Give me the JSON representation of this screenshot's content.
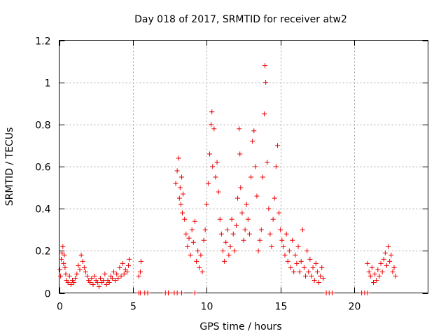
{
  "chart_data": {
    "type": "scatter",
    "title": "Day 018 of 2017, SRMTID for receiver atw2",
    "xlabel": "GPS time / hours",
    "ylabel": "SRMTID / TECUs",
    "xlim": [
      0,
      25
    ],
    "ylim": [
      0,
      1.2
    ],
    "x_ticks": [
      0,
      5,
      10,
      15,
      20
    ],
    "x_tick_labels": [
      "0",
      "5",
      "10",
      "15",
      "20"
    ],
    "y_ticks": [
      0,
      0.2,
      0.4,
      0.6,
      0.8,
      1.0,
      1.2
    ],
    "y_tick_labels": [
      "0",
      "0.2",
      "0.4",
      "0.6",
      "0.8",
      "1",
      "1.2"
    ],
    "grid": true,
    "marker": "+",
    "series_color": "#ee0000",
    "series": [
      {
        "name": "SRMTID",
        "points": [
          [
            0.05,
            0.11
          ],
          [
            0.1,
            0.08
          ],
          [
            0.15,
            0.16
          ],
          [
            0.2,
            0.19
          ],
          [
            0.25,
            0.22
          ],
          [
            0.3,
            0.14
          ],
          [
            0.35,
            0.18
          ],
          [
            0.4,
            0.12
          ],
          [
            0.45,
            0.09
          ],
          [
            0.5,
            0.06
          ],
          [
            0.6,
            0.05
          ],
          [
            0.7,
            0.08
          ],
          [
            0.8,
            0.04
          ],
          [
            0.9,
            0.06
          ],
          [
            1.0,
            0.05
          ],
          [
            1.1,
            0.07
          ],
          [
            1.2,
            0.09
          ],
          [
            1.3,
            0.13
          ],
          [
            1.4,
            0.11
          ],
          [
            1.5,
            0.18
          ],
          [
            1.6,
            0.15
          ],
          [
            1.7,
            0.12
          ],
          [
            1.8,
            0.1
          ],
          [
            1.9,
            0.08
          ],
          [
            2.0,
            0.06
          ],
          [
            2.1,
            0.05
          ],
          [
            2.2,
            0.07
          ],
          [
            2.3,
            0.04
          ],
          [
            2.4,
            0.08
          ],
          [
            2.5,
            0.06
          ],
          [
            2.6,
            0.05
          ],
          [
            2.7,
            0.03
          ],
          [
            2.8,
            0.07
          ],
          [
            2.9,
            0.05
          ],
          [
            3.0,
            0.06
          ],
          [
            3.1,
            0.09
          ],
          [
            3.2,
            0.04
          ],
          [
            3.3,
            0.06
          ],
          [
            3.4,
            0.05
          ],
          [
            3.5,
            0.08
          ],
          [
            3.6,
            0.07
          ],
          [
            3.7,
            0.1
          ],
          [
            3.8,
            0.06
          ],
          [
            3.9,
            0.09
          ],
          [
            4.0,
            0.07
          ],
          [
            4.1,
            0.12
          ],
          [
            4.2,
            0.08
          ],
          [
            4.3,
            0.14
          ],
          [
            4.4,
            0.09
          ],
          [
            4.5,
            0.11
          ],
          [
            4.6,
            0.1
          ],
          [
            4.7,
            0.13
          ],
          [
            4.75,
            0.16
          ],
          [
            5.4,
            0.08
          ],
          [
            5.5,
            0.1
          ],
          [
            5.55,
            0.15
          ],
          [
            5.4,
            0.0
          ],
          [
            5.5,
            0.0
          ],
          [
            5.8,
            0.0
          ],
          [
            6.0,
            0.0
          ],
          [
            7.2,
            0.0
          ],
          [
            7.4,
            0.0
          ],
          [
            7.8,
            0.0
          ],
          [
            8.0,
            0.0
          ],
          [
            8.3,
            0.0
          ],
          [
            9.2,
            0.0
          ],
          [
            7.9,
            0.52
          ],
          [
            8.0,
            0.58
          ],
          [
            8.1,
            0.64
          ],
          [
            8.15,
            0.45
          ],
          [
            8.2,
            0.5
          ],
          [
            8.25,
            0.42
          ],
          [
            8.3,
            0.55
          ],
          [
            8.35,
            0.38
          ],
          [
            8.4,
            0.47
          ],
          [
            8.5,
            0.35
          ],
          [
            8.6,
            0.28
          ],
          [
            8.7,
            0.22
          ],
          [
            8.8,
            0.26
          ],
          [
            8.9,
            0.18
          ],
          [
            9.0,
            0.3
          ],
          [
            9.1,
            0.24
          ],
          [
            9.2,
            0.34
          ],
          [
            9.3,
            0.15
          ],
          [
            9.4,
            0.2
          ],
          [
            9.5,
            0.12
          ],
          [
            9.6,
            0.18
          ],
          [
            9.7,
            0.1
          ],
          [
            9.8,
            0.25
          ],
          [
            9.9,
            0.3
          ],
          [
            10.0,
            0.42
          ],
          [
            10.1,
            0.52
          ],
          [
            10.2,
            0.66
          ],
          [
            10.3,
            0.8
          ],
          [
            10.35,
            0.86
          ],
          [
            10.4,
            0.6
          ],
          [
            10.5,
            0.78
          ],
          [
            10.6,
            0.55
          ],
          [
            10.7,
            0.62
          ],
          [
            10.8,
            0.48
          ],
          [
            10.9,
            0.35
          ],
          [
            11.0,
            0.28
          ],
          [
            11.1,
            0.2
          ],
          [
            11.2,
            0.15
          ],
          [
            11.3,
            0.24
          ],
          [
            11.4,
            0.3
          ],
          [
            11.5,
            0.18
          ],
          [
            11.6,
            0.22
          ],
          [
            11.7,
            0.35
          ],
          [
            11.8,
            0.28
          ],
          [
            11.9,
            0.2
          ],
          [
            12.0,
            0.32
          ],
          [
            12.1,
            0.45
          ],
          [
            12.2,
            0.78
          ],
          [
            12.25,
            0.66
          ],
          [
            12.3,
            0.5
          ],
          [
            12.4,
            0.38
          ],
          [
            12.5,
            0.25
          ],
          [
            12.6,
            0.3
          ],
          [
            12.7,
            0.42
          ],
          [
            12.8,
            0.35
          ],
          [
            12.9,
            0.28
          ],
          [
            13.0,
            0.55
          ],
          [
            13.1,
            0.72
          ],
          [
            13.2,
            0.77
          ],
          [
            13.3,
            0.6
          ],
          [
            13.4,
            0.46
          ],
          [
            13.5,
            0.2
          ],
          [
            13.6,
            0.25
          ],
          [
            13.7,
            0.3
          ],
          [
            13.8,
            0.55
          ],
          [
            13.9,
            0.85
          ],
          [
            13.95,
            1.08
          ],
          [
            14.0,
            1.0
          ],
          [
            14.1,
            0.62
          ],
          [
            14.2,
            0.4
          ],
          [
            14.3,
            0.28
          ],
          [
            14.4,
            0.22
          ],
          [
            14.5,
            0.35
          ],
          [
            14.6,
            0.45
          ],
          [
            14.7,
            0.6
          ],
          [
            14.8,
            0.7
          ],
          [
            14.9,
            0.38
          ],
          [
            15.0,
            0.3
          ],
          [
            15.1,
            0.25
          ],
          [
            15.2,
            0.22
          ],
          [
            15.3,
            0.18
          ],
          [
            15.4,
            0.28
          ],
          [
            15.5,
            0.15
          ],
          [
            15.6,
            0.2
          ],
          [
            15.7,
            0.12
          ],
          [
            15.8,
            0.25
          ],
          [
            15.9,
            0.1
          ],
          [
            16.0,
            0.18
          ],
          [
            16.1,
            0.14
          ],
          [
            16.2,
            0.22
          ],
          [
            16.3,
            0.1
          ],
          [
            16.4,
            0.15
          ],
          [
            16.5,
            0.3
          ],
          [
            16.6,
            0.12
          ],
          [
            16.7,
            0.08
          ],
          [
            16.8,
            0.2
          ],
          [
            16.9,
            0.1
          ],
          [
            17.0,
            0.16
          ],
          [
            17.1,
            0.08
          ],
          [
            17.2,
            0.12
          ],
          [
            17.3,
            0.06
          ],
          [
            17.4,
            0.14
          ],
          [
            17.5,
            0.1
          ],
          [
            17.6,
            0.05
          ],
          [
            17.7,
            0.08
          ],
          [
            17.8,
            0.12
          ],
          [
            17.9,
            0.07
          ],
          [
            18.1,
            0.0
          ],
          [
            18.3,
            0.0
          ],
          [
            18.5,
            0.0
          ],
          [
            20.5,
            0.0
          ],
          [
            20.7,
            0.0
          ],
          [
            20.9,
            0.0
          ],
          [
            20.9,
            0.14
          ],
          [
            21.0,
            0.1
          ],
          [
            21.1,
            0.08
          ],
          [
            21.2,
            0.12
          ],
          [
            21.3,
            0.05
          ],
          [
            21.4,
            0.09
          ],
          [
            21.5,
            0.06
          ],
          [
            21.6,
            0.11
          ],
          [
            21.7,
            0.08
          ],
          [
            21.8,
            0.14
          ],
          [
            21.9,
            0.1
          ],
          [
            22.0,
            0.16
          ],
          [
            22.1,
            0.19
          ],
          [
            22.2,
            0.13
          ],
          [
            22.3,
            0.22
          ],
          [
            22.4,
            0.15
          ],
          [
            22.5,
            0.18
          ],
          [
            22.6,
            0.1
          ],
          [
            22.7,
            0.12
          ],
          [
            22.8,
            0.08
          ]
        ]
      }
    ]
  }
}
